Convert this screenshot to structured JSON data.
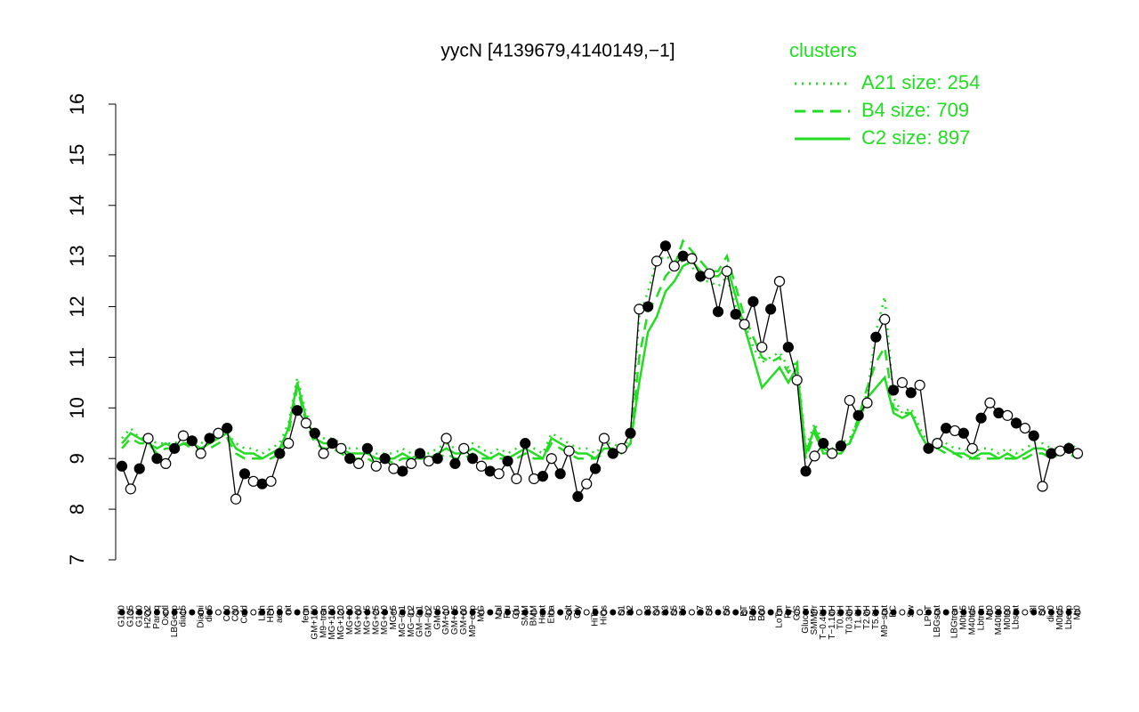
{
  "chart_data": {
    "type": "line",
    "title": "yycN [4139679,4140149,−1]",
    "categories": [
      "G150",
      "G135",
      "G180",
      "H2O2",
      "Paraq",
      "Oxctl",
      "LBGexp",
      "dia15",
      null,
      "Diami",
      "dia5",
      null,
      "C90",
      "C30",
      "Cold",
      null,
      "LPh",
      "HPh",
      "aero",
      "nit",
      null,
      "ferm",
      "GM+150",
      "M9−tran",
      "MG+150",
      "MG+120",
      "MG+90",
      "MG+60",
      "MG+45",
      "MG+25",
      "MG+10",
      "MG+5",
      "MG−0.1",
      "MG−0.2",
      "GM−0.1",
      "GM−0.2",
      "GM+5",
      "GM+10",
      "GM+25",
      "GM+60",
      "M9−exp",
      "M/G",
      null,
      "Mal",
      "Fru",
      "Glu",
      "SMM",
      "BMM",
      "Heat",
      "Etha",
      null,
      "Salt",
      "Gly",
      null,
      "HiTm",
      "HiOs",
      null,
      "S1",
      "S2",
      null,
      "S3",
      "S4",
      "S3",
      "S5",
      "S6",
      null,
      "S7",
      "S8",
      null,
      "S6",
      null,
      "BT",
      "B36",
      "B60",
      null,
      "LoTm",
      "Pyr",
      "G/S",
      "Glucon",
      "SMMPr",
      "T−0.40H",
      "T−1.10H",
      "T0.0H",
      "T0.30H",
      "T1.0H",
      "T2.0H",
      "T5.0H",
      "M9−stat",
      "BC",
      null,
      "Sw",
      null,
      "LPhT",
      "LBGstat",
      null,
      "LBGtran",
      "M0t45",
      "M40t45",
      "Lbtran",
      "Mt0",
      "M40t90",
      "M0t90",
      "Lbstat",
      null,
      "Bl",
      "S0",
      "dia0",
      "M0t45",
      "Lbexp",
      "Mt0"
    ],
    "values": [
      8.85,
      8.4,
      8.8,
      9.4,
      9.0,
      8.9,
      9.2,
      9.45,
      9.35,
      9.1,
      9.4,
      9.5,
      9.6,
      8.2,
      8.7,
      8.55,
      8.5,
      8.55,
      9.1,
      9.3,
      9.95,
      9.7,
      9.5,
      9.1,
      9.3,
      9.2,
      9.0,
      8.9,
      9.2,
      8.85,
      9.0,
      8.8,
      8.75,
      8.9,
      9.1,
      8.95,
      9.0,
      9.4,
      8.9,
      9.2,
      9.0,
      8.85,
      8.75,
      8.7,
      8.95,
      8.6,
      9.3,
      8.6,
      8.65,
      9.0,
      8.7,
      9.15,
      8.25,
      8.5,
      8.8,
      9.4,
      9.1,
      9.2,
      9.5,
      11.95,
      12.0,
      12.9,
      13.2,
      12.8,
      13.0,
      12.95,
      12.6,
      12.65,
      11.9,
      12.7,
      11.85,
      11.65,
      12.1,
      11.2,
      11.95,
      12.5,
      11.2,
      10.55,
      8.75,
      9.05,
      9.3,
      9.1,
      9.25,
      10.15,
      9.85,
      10.1,
      11.4,
      11.75,
      10.35,
      10.5,
      10.3,
      10.45,
      9.2,
      9.3,
      9.6,
      9.55,
      9.5,
      9.2,
      9.8,
      10.1,
      9.9,
      9.85,
      9.7,
      9.6,
      9.45,
      8.45,
      9.1,
      9.15,
      9.2,
      9.1
    ],
    "color": "#000000",
    "legend_title": "clusters",
    "series": [
      {
        "name": "A21 size: 254",
        "color": "#22dd22",
        "linestyle": "dotted",
        "values": [
          9.4,
          9.6,
          9.4,
          9.4,
          9.3,
          9.3,
          9.3,
          9.4,
          9.3,
          9.3,
          9.4,
          9.5,
          9.5,
          9.3,
          9.2,
          9.2,
          9.1,
          9.2,
          9.3,
          9.7,
          10.6,
          9.9,
          9.5,
          9.4,
          9.4,
          9.3,
          9.2,
          9.2,
          9.2,
          9.1,
          9.1,
          9.1,
          9.2,
          9.1,
          9.2,
          9.1,
          9.2,
          9.3,
          9.2,
          9.2,
          9.3,
          9.2,
          9.1,
          9.2,
          9.1,
          9.2,
          9.3,
          9.2,
          9.1,
          9.5,
          9.4,
          9.3,
          9.2,
          9.2,
          9.1,
          9.3,
          9.3,
          9.2,
          9.4,
          11.8,
          12.3,
          12.9,
          13.0,
          12.9,
          12.9,
          12.8,
          12.5,
          12.5,
          12.4,
          12.6,
          12.0,
          11.7,
          11.2,
          10.9,
          11.0,
          11.1,
          10.8,
          10.9,
          9.2,
          9.7,
          9.3,
          9.2,
          9.3,
          9.4,
          9.8,
          10.3,
          11.5,
          12.2,
          10.2,
          9.9,
          10.0,
          9.6,
          9.3,
          9.4,
          9.3,
          9.2,
          9.2,
          9.1,
          9.2,
          9.2,
          9.1,
          9.2,
          9.1,
          9.2,
          9.3,
          9.3,
          9.2,
          9.2,
          9.3,
          9.2
        ]
      },
      {
        "name": "B4 size: 709",
        "color": "#22dd22",
        "linestyle": "dashed",
        "values": [
          9.2,
          9.4,
          9.3,
          9.3,
          9.1,
          9.2,
          9.2,
          9.3,
          9.2,
          9.1,
          9.2,
          9.3,
          9.4,
          9.1,
          9.0,
          9.0,
          9.0,
          9.0,
          9.1,
          9.5,
          10.4,
          9.7,
          9.3,
          9.2,
          9.2,
          9.1,
          9.0,
          9.0,
          9.0,
          8.9,
          9.0,
          8.9,
          9.0,
          9.0,
          9.0,
          9.0,
          9.0,
          9.1,
          9.0,
          9.0,
          9.1,
          9.0,
          9.0,
          9.0,
          9.0,
          9.0,
          9.1,
          9.0,
          9.0,
          9.3,
          9.2,
          9.1,
          9.0,
          9.0,
          9.0,
          9.1,
          9.1,
          9.1,
          9.3,
          11.0,
          11.9,
          12.2,
          12.6,
          12.8,
          13.3,
          13.1,
          12.9,
          12.7,
          12.7,
          13.0,
          12.4,
          11.8,
          11.4,
          11.0,
          10.9,
          11.0,
          10.7,
          10.9,
          9.0,
          9.5,
          9.1,
          9.1,
          9.1,
          9.3,
          9.8,
          10.4,
          10.9,
          11.2,
          10.0,
          9.9,
          9.9,
          9.5,
          9.2,
          9.2,
          9.1,
          9.1,
          9.0,
          9.0,
          9.0,
          9.0,
          9.0,
          9.0,
          9.0,
          9.0,
          9.1,
          9.1,
          9.0,
          9.1,
          9.1,
          9.0
        ]
      },
      {
        "name": "C2 size: 897",
        "color": "#22dd22",
        "linestyle": "solid",
        "values": [
          9.3,
          9.5,
          9.4,
          9.3,
          9.2,
          9.3,
          9.2,
          9.3,
          9.3,
          9.2,
          9.3,
          9.4,
          9.5,
          9.2,
          9.1,
          9.1,
          9.0,
          9.1,
          9.2,
          9.6,
          10.5,
          9.8,
          9.4,
          9.3,
          9.3,
          9.2,
          9.1,
          9.1,
          9.1,
          9.0,
          9.0,
          9.0,
          9.1,
          9.0,
          9.1,
          9.0,
          9.1,
          9.2,
          9.1,
          9.1,
          9.2,
          9.1,
          9.0,
          9.1,
          9.0,
          9.1,
          9.2,
          9.1,
          9.0,
          9.4,
          9.3,
          9.2,
          9.1,
          9.1,
          9.0,
          9.2,
          9.2,
          9.1,
          9.3,
          10.5,
          11.5,
          11.8,
          12.3,
          12.5,
          12.8,
          12.9,
          12.7,
          12.6,
          12.6,
          12.8,
          12.2,
          11.6,
          11.0,
          10.4,
          10.6,
          10.8,
          10.5,
          10.8,
          9.1,
          9.6,
          9.2,
          9.1,
          9.2,
          9.3,
          9.7,
          10.2,
          10.4,
          10.6,
          9.9,
          9.8,
          9.9,
          9.5,
          9.2,
          9.3,
          9.2,
          9.1,
          9.1,
          9.0,
          9.1,
          9.1,
          9.0,
          9.1,
          9.0,
          9.1,
          9.2,
          9.2,
          9.1,
          9.1,
          9.2,
          9.1
        ]
      }
    ],
    "ylim": [
      7,
      16
    ],
    "yticks": [
      7,
      8,
      9,
      10,
      11,
      12,
      13,
      14,
      15,
      16
    ]
  }
}
